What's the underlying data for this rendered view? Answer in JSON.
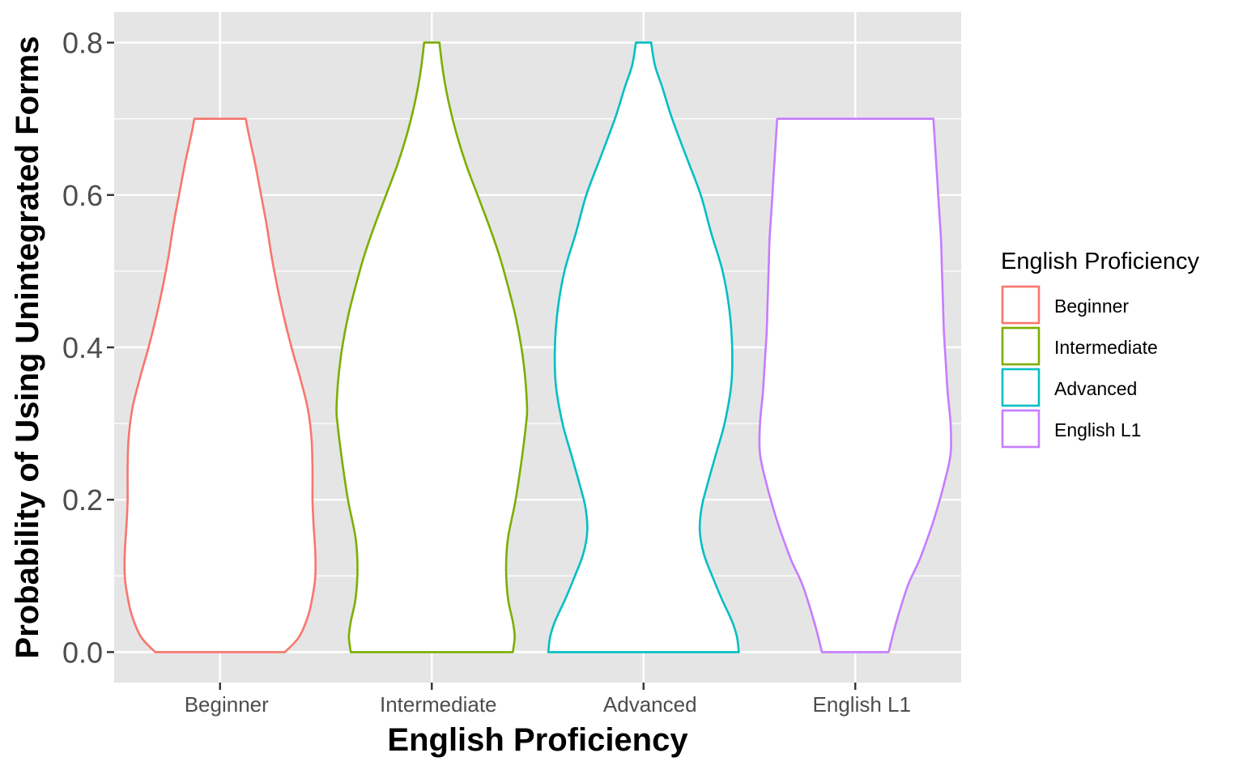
{
  "chart_data": {
    "type": "violin",
    "title": "",
    "xlabel": "English Proficiency",
    "ylabel": "Probability of Using Unintegrated Forms",
    "ylim": [
      -0.04,
      0.84
    ],
    "yticks": [
      0.0,
      0.2,
      0.4,
      0.6,
      0.8
    ],
    "ytick_labels": [
      "0.0",
      "0.2",
      "0.4",
      "0.6",
      "0.8"
    ],
    "categories": [
      "Beginner",
      "Intermediate",
      "Advanced",
      "English L1"
    ],
    "grid": true,
    "panel_background": "#e5e5e5",
    "grid_color": "#ffffff",
    "legend": {
      "title": "English Proficiency",
      "position": "right",
      "entries": [
        "Beginner",
        "Intermediate",
        "Advanced",
        "English L1"
      ]
    },
    "series": [
      {
        "category": "Beginner",
        "color": "#f8766d",
        "min": 0.0,
        "max": 0.7,
        "density_profile": [
          [
            0.0,
            0.68
          ],
          [
            0.02,
            0.83
          ],
          [
            0.05,
            0.93
          ],
          [
            0.08,
            0.98
          ],
          [
            0.1,
            1.0
          ],
          [
            0.13,
            1.0
          ],
          [
            0.17,
            0.98
          ],
          [
            0.2,
            0.97
          ],
          [
            0.24,
            0.97
          ],
          [
            0.28,
            0.96
          ],
          [
            0.32,
            0.92
          ],
          [
            0.36,
            0.84
          ],
          [
            0.4,
            0.75
          ],
          [
            0.44,
            0.67
          ],
          [
            0.48,
            0.6
          ],
          [
            0.52,
            0.54
          ],
          [
            0.56,
            0.49
          ],
          [
            0.6,
            0.43
          ],
          [
            0.64,
            0.37
          ],
          [
            0.68,
            0.3
          ],
          [
            0.7,
            0.27
          ]
        ]
      },
      {
        "category": "Intermediate",
        "color": "#7cae00",
        "min": 0.0,
        "max": 0.8,
        "density_profile": [
          [
            0.0,
            0.85
          ],
          [
            0.02,
            0.87
          ],
          [
            0.04,
            0.85
          ],
          [
            0.07,
            0.8
          ],
          [
            0.11,
            0.78
          ],
          [
            0.15,
            0.8
          ],
          [
            0.2,
            0.88
          ],
          [
            0.25,
            0.94
          ],
          [
            0.3,
            0.99
          ],
          [
            0.32,
            1.0
          ],
          [
            0.36,
            0.98
          ],
          [
            0.4,
            0.94
          ],
          [
            0.44,
            0.88
          ],
          [
            0.48,
            0.8
          ],
          [
            0.52,
            0.71
          ],
          [
            0.56,
            0.6
          ],
          [
            0.6,
            0.48
          ],
          [
            0.64,
            0.36
          ],
          [
            0.68,
            0.26
          ],
          [
            0.72,
            0.18
          ],
          [
            0.76,
            0.12
          ],
          [
            0.8,
            0.08
          ]
        ]
      },
      {
        "category": "Advanced",
        "color": "#00bfc4",
        "min": 0.0,
        "max": 0.8,
        "density_profile": [
          [
            0.0,
            1.0
          ],
          [
            0.02,
            0.98
          ],
          [
            0.04,
            0.93
          ],
          [
            0.07,
            0.82
          ],
          [
            0.1,
            0.72
          ],
          [
            0.13,
            0.63
          ],
          [
            0.16,
            0.59
          ],
          [
            0.19,
            0.61
          ],
          [
            0.22,
            0.67
          ],
          [
            0.26,
            0.76
          ],
          [
            0.3,
            0.85
          ],
          [
            0.35,
            0.92
          ],
          [
            0.4,
            0.93
          ],
          [
            0.45,
            0.9
          ],
          [
            0.5,
            0.83
          ],
          [
            0.55,
            0.71
          ],
          [
            0.6,
            0.6
          ],
          [
            0.65,
            0.45
          ],
          [
            0.7,
            0.3
          ],
          [
            0.74,
            0.2
          ],
          [
            0.77,
            0.12
          ],
          [
            0.8,
            0.08
          ]
        ]
      },
      {
        "category": "English L1",
        "color": "#c77cff",
        "min": 0.0,
        "max": 0.7,
        "density_profile": [
          [
            0.0,
            0.35
          ],
          [
            0.03,
            0.41
          ],
          [
            0.06,
            0.48
          ],
          [
            0.09,
            0.56
          ],
          [
            0.12,
            0.67
          ],
          [
            0.15,
            0.76
          ],
          [
            0.18,
            0.84
          ],
          [
            0.22,
            0.93
          ],
          [
            0.26,
            1.0
          ],
          [
            0.3,
            1.0
          ],
          [
            0.34,
            0.97
          ],
          [
            0.38,
            0.95
          ],
          [
            0.42,
            0.93
          ],
          [
            0.46,
            0.92
          ],
          [
            0.5,
            0.91
          ],
          [
            0.54,
            0.9
          ],
          [
            0.58,
            0.88
          ],
          [
            0.62,
            0.86
          ],
          [
            0.66,
            0.84
          ],
          [
            0.7,
            0.82
          ]
        ]
      }
    ]
  }
}
